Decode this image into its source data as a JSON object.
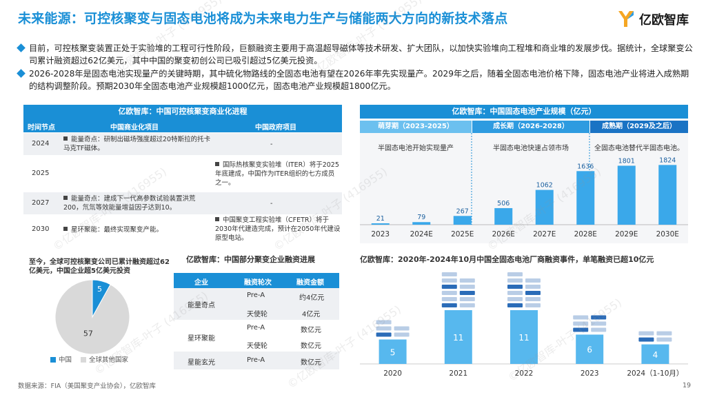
{
  "title": "未来能源：可控核聚变与固态电池将成为未来电力生产与储能两大方向的新技术落点",
  "logo": {
    "text": "亿欧智库",
    "icon": "yiou-logo-icon",
    "color": "#f5a623"
  },
  "bullets": [
    "目前，可控核聚变装置正处于实验堆的工程可行性阶段，巨额融资主要用于高温超导磁体等技术研发、扩大团队，以加快实验堆向工程堆和商业堆的发展步伐。据统计，全球聚变公司累计融资超过62亿美元，其中中国的聚变初创公司已吸引超过5亿美元投资。",
    "2026-2028年是固态电池实现量产的关键時期，其中硫化物路线的全固态电池有望在2026年率先实现量产。2029年之后，随着全固态电池价格下降，固态电池产业将进入成熟期的结构调整阶段。预期2030年全固态电池产业规模超1000亿元，固态电池产业规模超1800亿元。"
  ],
  "fusion_table": {
    "title": "亿欧智库：中国可控核聚变商业化进程",
    "columns": [
      "时间节点",
      "中国商业化项目",
      "中国政府项目"
    ],
    "rows": [
      {
        "year": "2024",
        "commercial": "能量奇点：研制出磁场强度超过20特斯拉的托卡马克TF磁体。",
        "government": "-"
      },
      {
        "year": "2025",
        "commercial": "",
        "government": "国际热核聚变实验堆（ITER）将于2025年底建成，中国作为ITER组织的七方成员之一。"
      },
      {
        "year": "2027",
        "commercial": "能量奇点：建成下一代高参数试验装置洪荒200，氘氚等效能量增益因子达到10。",
        "government": "-"
      },
      {
        "year": "2030",
        "commercial": "星环聚能：最终实现聚变产能。",
        "government": "中国聚变工程实验堆（CFETR）将于2030年代建造完成，预计在2050年代建设原型电站。"
      }
    ]
  },
  "battery_chart": {
    "title": "亿欧智库：中国固态电池产业规模（亿元）",
    "phases": [
      {
        "name": "萌芽期（2023-2025）",
        "desc": "半固态电池开始实现量产",
        "color": "#6cc0ef"
      },
      {
        "name": "成长期（2026-2028）",
        "desc": "半固态电池快速占领市场",
        "color": "#2e9be0"
      },
      {
        "name": "成熟期（2029及之后）",
        "desc": "全固态电池替代半固态电池。",
        "color": "#1a73c4"
      }
    ]
  },
  "chart_data": [
    {
      "type": "bar",
      "title": "亿欧智库：中国固态电池产业规模（亿元）",
      "categories": [
        "2023",
        "2024E",
        "2025E",
        "2026E",
        "2027E",
        "2028E",
        "2029E",
        "2030E"
      ],
      "values": [
        21,
        79,
        267,
        506,
        1062,
        1636,
        1801,
        1824
      ],
      "ylim": [
        0,
        2000
      ],
      "bar_color": "#3aa8ea"
    },
    {
      "type": "pie",
      "title": "至今，全球可控核聚变公司已累计融资超过62亿美元，中国企业超5亿美元投资",
      "slices": [
        {
          "label": "中国",
          "value": 5,
          "color": "#1a8fd6"
        },
        {
          "label": "全球其他国家",
          "value": 57,
          "color": "#d9d9d9"
        }
      ]
    },
    {
      "type": "bar",
      "title": "亿欧智库：2020年-2024年10月中国全固态电池厂商融资事件，单笔融资已超10亿元",
      "categories": [
        "2020",
        "2021",
        "2022",
        "2023",
        "2024（1-10月）"
      ],
      "values": [
        5,
        11,
        11,
        6,
        4
      ],
      "ylim": [
        0,
        18
      ],
      "bar_color": "#57b8ee"
    }
  ],
  "financing_table": {
    "title": "亿欧智库：中国部分聚变企业融资进展",
    "columns": [
      "企业",
      "融资轮次",
      "融资金额"
    ],
    "rows": [
      {
        "company": "能量奇点",
        "rounds": [
          {
            "round": "Pre-A",
            "amount": "约4亿元"
          },
          {
            "round": "天使轮",
            "amount": "4亿元"
          }
        ]
      },
      {
        "company": "星环聚能",
        "rounds": [
          {
            "round": "Pre-A",
            "amount": "数亿元"
          },
          {
            "round": "天使轮",
            "amount": "数亿元"
          }
        ]
      },
      {
        "company": "星能玄光",
        "rounds": [
          {
            "round": "Pre-A",
            "amount": "数亿元"
          }
        ]
      }
    ]
  },
  "watermark": "©亿欧智库-叶子 (416955)",
  "source": "数据来源：FIA（美国聚变产业协会），亿欧智库",
  "page_number": "19"
}
